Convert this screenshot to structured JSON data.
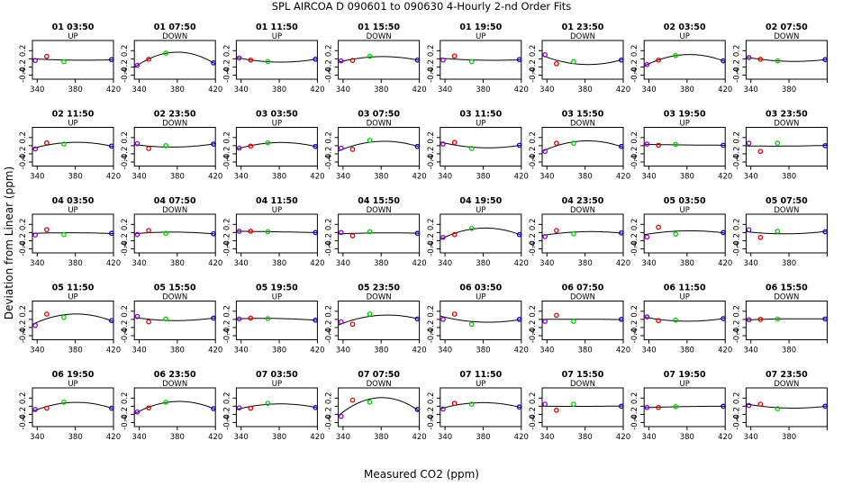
{
  "title": "SPL   AIRCOA D   090601 to 090630   4-Hourly 2-nd Order Fits",
  "xlabel": "Measured CO2 (ppm)",
  "ylabel": "Deviation from Linear (ppm)",
  "colors": {
    "axis": "#000000",
    "curve": "#000000",
    "p1": "#8800cc",
    "p2": "#dd0000",
    "p3": "#00cc00",
    "p4": "#0000cc"
  },
  "chart_data": {
    "type": "scatter",
    "grid": false,
    "xlim": [
      335,
      420
    ],
    "ylim": [
      -0.5,
      0.45
    ],
    "xticks": [
      340,
      380,
      420
    ],
    "yticks": [
      -0.4,
      -0.2,
      0.0,
      0.2
    ],
    "ytick_labels": [
      "-0.4",
      "-0.2",
      "",
      "0.2"
    ],
    "standard_x": [
      338,
      350,
      368,
      418
    ],
    "panels": [
      {
        "id": "01 03:50",
        "dir": "UP",
        "y": [
          -0.04,
          0.06,
          -0.07,
          -0.02
        ]
      },
      {
        "id": "01 07:50",
        "dir": "DOWN",
        "y": [
          -0.16,
          -0.01,
          0.14,
          -0.1
        ]
      },
      {
        "id": "01 11:50",
        "dir": "UP",
        "y": [
          0.02,
          -0.03,
          -0.07,
          -0.01
        ]
      },
      {
        "id": "01 15:50",
        "dir": "DOWN",
        "y": [
          -0.05,
          -0.04,
          0.06,
          -0.03
        ]
      },
      {
        "id": "01 19:50",
        "dir": "UP",
        "y": [
          -0.03,
          0.07,
          -0.07,
          -0.02
        ]
      },
      {
        "id": "01 23:50",
        "dir": "DOWN",
        "y": [
          0.1,
          -0.12,
          -0.07,
          -0.03
        ]
      },
      {
        "id": "02 03:50",
        "dir": "UP",
        "y": [
          -0.14,
          -0.03,
          0.08,
          -0.05
        ]
      },
      {
        "id": "02 07:50",
        "dir": "DOWN",
        "y": [
          0.03,
          -0.01,
          -0.05,
          -0.02
        ]
      },
      {
        "id": "02 11:50",
        "dir": "UP",
        "y": [
          -0.08,
          0.07,
          0.04,
          -0.01
        ]
      },
      {
        "id": "02 23:50",
        "dir": "DOWN",
        "y": [
          0.05,
          -0.07,
          0.0,
          0.04
        ]
      },
      {
        "id": "03 03:50",
        "dir": "UP",
        "y": [
          -0.06,
          -0.01,
          0.07,
          -0.02
        ]
      },
      {
        "id": "03 07:50",
        "dir": "DOWN",
        "y": [
          -0.06,
          -0.09,
          0.13,
          -0.02
        ]
      },
      {
        "id": "03 11:50",
        "dir": "UP",
        "y": [
          0.04,
          0.08,
          -0.07,
          0.01
        ]
      },
      {
        "id": "03 15:50",
        "dir": "DOWN",
        "y": [
          -0.14,
          0.06,
          0.06,
          -0.02
        ]
      },
      {
        "id": "03 19:50",
        "dir": "UP",
        "y": [
          0.04,
          0.01,
          0.03,
          0.01
        ]
      },
      {
        "id": "03 23:50",
        "dir": "DOWN",
        "y": [
          0.06,
          -0.14,
          0.06,
          0.0
        ]
      },
      {
        "id": "04 03:50",
        "dir": "UP",
        "y": [
          -0.06,
          0.07,
          -0.05,
          -0.02
        ]
      },
      {
        "id": "04 07:50",
        "dir": "DOWN",
        "y": [
          -0.05,
          0.05,
          -0.02,
          -0.03
        ]
      },
      {
        "id": "04 11:50",
        "dir": "UP",
        "y": [
          0.03,
          0.03,
          0.02,
          0.0
        ]
      },
      {
        "id": "04 15:50",
        "dir": "DOWN",
        "y": [
          0.0,
          -0.08,
          0.02,
          -0.02
        ]
      },
      {
        "id": "04 19:50",
        "dir": "UP",
        "y": [
          -0.12,
          -0.05,
          0.1,
          -0.05
        ]
      },
      {
        "id": "04 23:50",
        "dir": "DOWN",
        "y": [
          -0.1,
          0.05,
          -0.03,
          -0.01
        ]
      },
      {
        "id": "05 03:50",
        "dir": "UP",
        "y": [
          -0.11,
          0.13,
          -0.04,
          0.0
        ]
      },
      {
        "id": "05 07:50",
        "dir": "DOWN",
        "y": [
          0.07,
          -0.12,
          0.03,
          0.02
        ]
      },
      {
        "id": "05 11:50",
        "dir": "UP",
        "y": [
          -0.15,
          0.13,
          0.05,
          -0.03
        ]
      },
      {
        "id": "05 15:50",
        "dir": "DOWN",
        "y": [
          0.07,
          -0.06,
          0.01,
          0.03
        ]
      },
      {
        "id": "05 19:50",
        "dir": "UP",
        "y": [
          0.01,
          0.03,
          0.02,
          -0.02
        ]
      },
      {
        "id": "05 23:50",
        "dir": "DOWN",
        "y": [
          -0.06,
          -0.12,
          0.13,
          0.01
        ]
      },
      {
        "id": "06 03:50",
        "dir": "UP",
        "y": [
          0.0,
          0.13,
          -0.12,
          0.0
        ]
      },
      {
        "id": "06 07:50",
        "dir": "DOWN",
        "y": [
          -0.05,
          0.1,
          -0.05,
          0.0
        ]
      },
      {
        "id": "06 11:50",
        "dir": "UP",
        "y": [
          0.06,
          -0.03,
          -0.02,
          0.02
        ]
      },
      {
        "id": "06 15:50",
        "dir": "DOWN",
        "y": [
          -0.01,
          0.0,
          0.01,
          0.01
        ]
      },
      {
        "id": "06 19:50",
        "dir": "UP",
        "y": [
          -0.08,
          -0.05,
          0.1,
          -0.05
        ]
      },
      {
        "id": "06 23:50",
        "dir": "DOWN",
        "y": [
          -0.14,
          -0.04,
          0.1,
          -0.06
        ]
      },
      {
        "id": "07 03:50",
        "dir": "UP",
        "y": [
          -0.04,
          -0.05,
          0.07,
          -0.03
        ]
      },
      {
        "id": "07 07:50",
        "dir": "DOWN",
        "y": [
          -0.25,
          0.15,
          0.1,
          -0.08
        ]
      },
      {
        "id": "07 11:50",
        "dir": "UP",
        "y": [
          -0.07,
          0.07,
          0.05,
          -0.02
        ]
      },
      {
        "id": "07 15:50",
        "dir": "DOWN",
        "y": [
          0.05,
          -0.1,
          0.05,
          0.0
        ]
      },
      {
        "id": "07 19:50",
        "dir": "UP",
        "y": [
          -0.03,
          -0.03,
          -0.01,
          0.0
        ]
      },
      {
        "id": "07 23:50",
        "dir": "DOWN",
        "y": [
          0.02,
          0.05,
          -0.06,
          0.0
        ]
      }
    ]
  }
}
